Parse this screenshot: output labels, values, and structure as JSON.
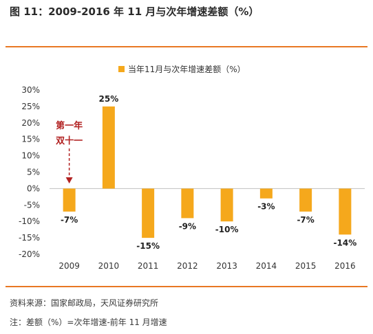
{
  "figure": {
    "title": "图 11：2009-2016 年 11 月与次年增速差额（%）",
    "accent_color": "#e87722",
    "source": "资料来源：国家邮政局，天风证券研究所",
    "note": "注：差额（%）=次年增速-前年 11 月增速"
  },
  "chart_data": {
    "type": "bar",
    "categories": [
      "2009",
      "2010",
      "2011",
      "2012",
      "2013",
      "2014",
      "2015",
      "2016"
    ],
    "series": [
      {
        "name": "当年11月与次年增速差额（%）",
        "values": [
          -7,
          25,
          -15,
          -9,
          -10,
          -3,
          -7,
          -14
        ],
        "color": "#f5a81c"
      }
    ],
    "data_labels": [
      "-7%",
      "25%",
      "-15%",
      "-9%",
      "-10%",
      "-3%",
      "-7%",
      "-14%"
    ],
    "yticks": [
      30,
      25,
      20,
      15,
      10,
      5,
      0,
      -5,
      -10,
      -15,
      -20
    ],
    "ytick_labels": [
      "30%",
      "25%",
      "20%",
      "15%",
      "10%",
      "5%",
      "0%",
      "-5%",
      "-10%",
      "-15%",
      "-20%"
    ],
    "ylim": [
      -20,
      30
    ],
    "legend_position": "top-center",
    "grid": false,
    "annotation": {
      "lines": [
        "第一年",
        "双十一"
      ],
      "category": "2009",
      "color": "#b22222",
      "arrow": "dashed-down"
    }
  }
}
